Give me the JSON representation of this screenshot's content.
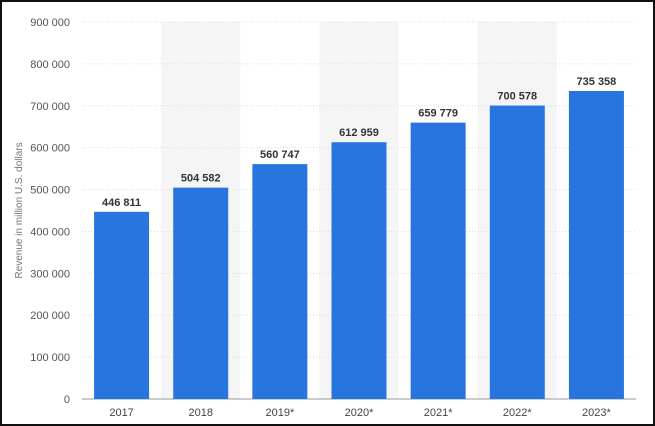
{
  "chart_data": {
    "type": "bar",
    "categories": [
      "2017",
      "2018",
      "2019*",
      "2020*",
      "2021*",
      "2022*",
      "2023*"
    ],
    "values": [
      446811,
      504582,
      560747,
      612959,
      659779,
      700578,
      735358
    ],
    "value_labels": [
      "446 811",
      "504 582",
      "560 747",
      "612 959",
      "659 779",
      "700 578",
      "735 358"
    ],
    "ylabel": "Revenue in million U.S. dollars",
    "ylim": [
      0,
      900000
    ],
    "yticks": [
      0,
      100000,
      200000,
      300000,
      400000,
      500000,
      600000,
      700000,
      800000,
      900000
    ],
    "ytick_labels": [
      "0",
      "100 000",
      "200 000",
      "300 000",
      "400 000",
      "500 000",
      "600 000",
      "700 000",
      "800 000",
      "900 000"
    ],
    "grid": true,
    "bar_color": "#2875DF",
    "alt_band_color": "#F5F5F5"
  }
}
